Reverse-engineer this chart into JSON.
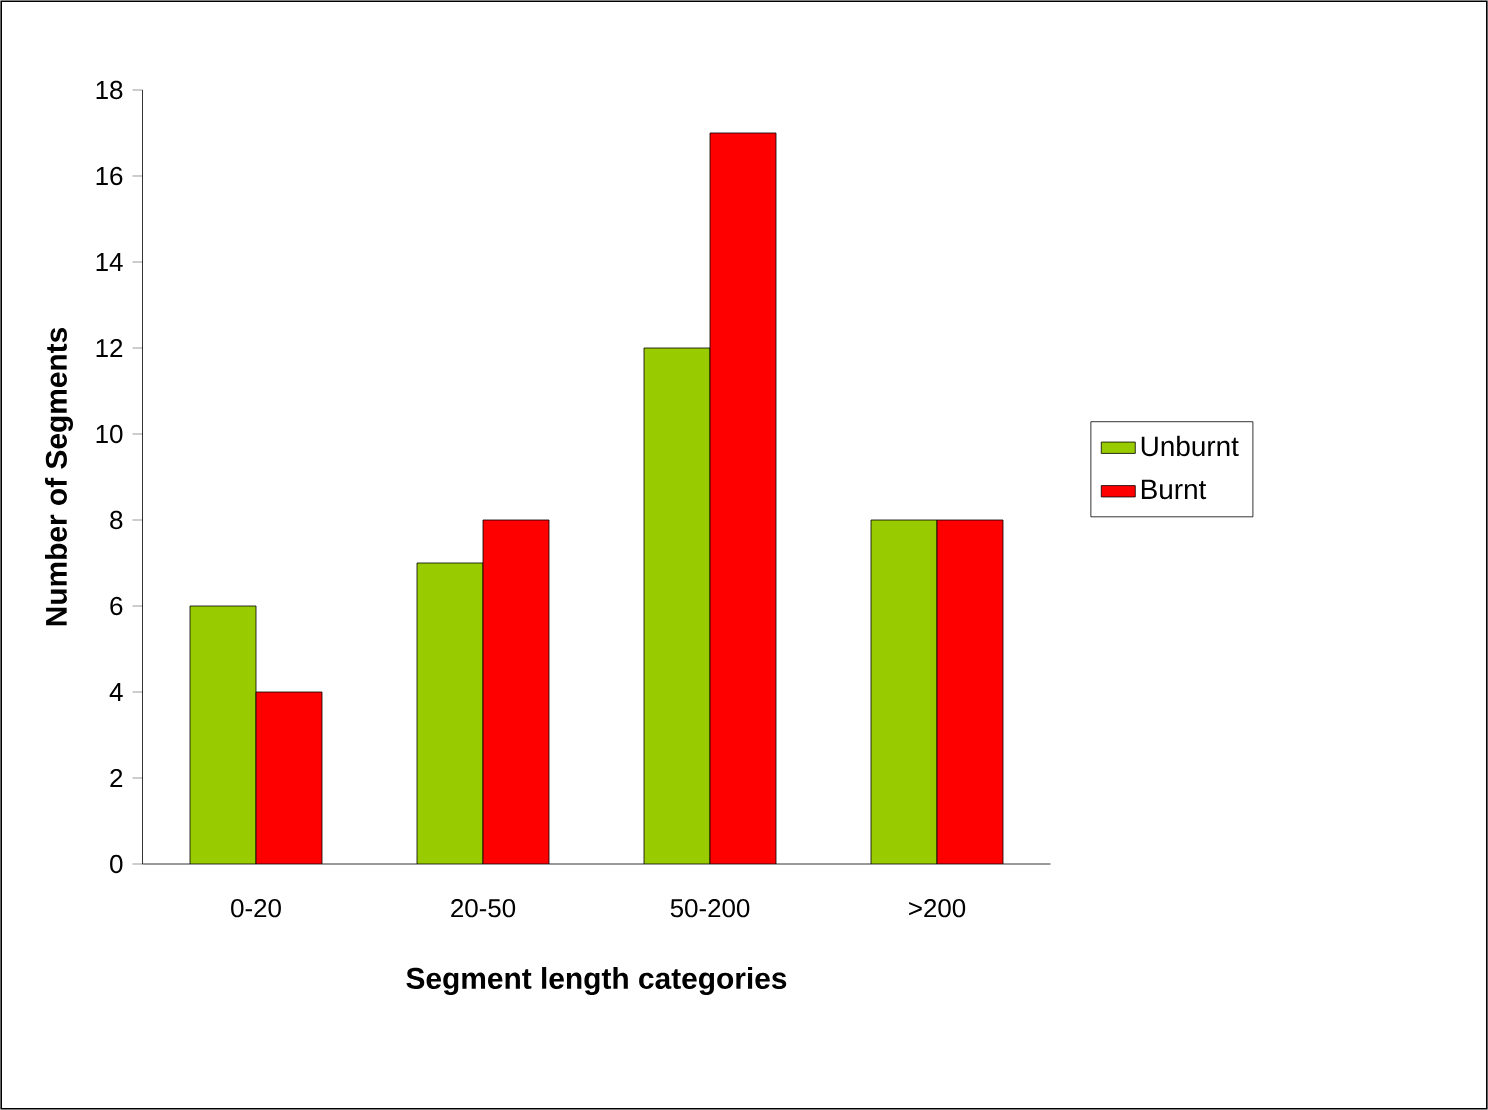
{
  "chart_data": {
    "type": "bar",
    "xlabel": "Segment length categories",
    "ylabel": "Number of Segments",
    "categories": [
      "0-20",
      "20-50",
      "50-200",
      ">200"
    ],
    "series": [
      {
        "name": "Unburnt",
        "color": "#99cc00",
        "values": [
          6,
          7,
          12,
          8
        ]
      },
      {
        "name": "Burnt",
        "color": "#ff0000",
        "values": [
          4,
          8,
          17,
          8
        ]
      }
    ],
    "ylim": [
      0,
      18
    ],
    "yticks": [
      0,
      2,
      4,
      6,
      8,
      10,
      12,
      14,
      16,
      18
    ],
    "legend": "right",
    "grid": false
  }
}
